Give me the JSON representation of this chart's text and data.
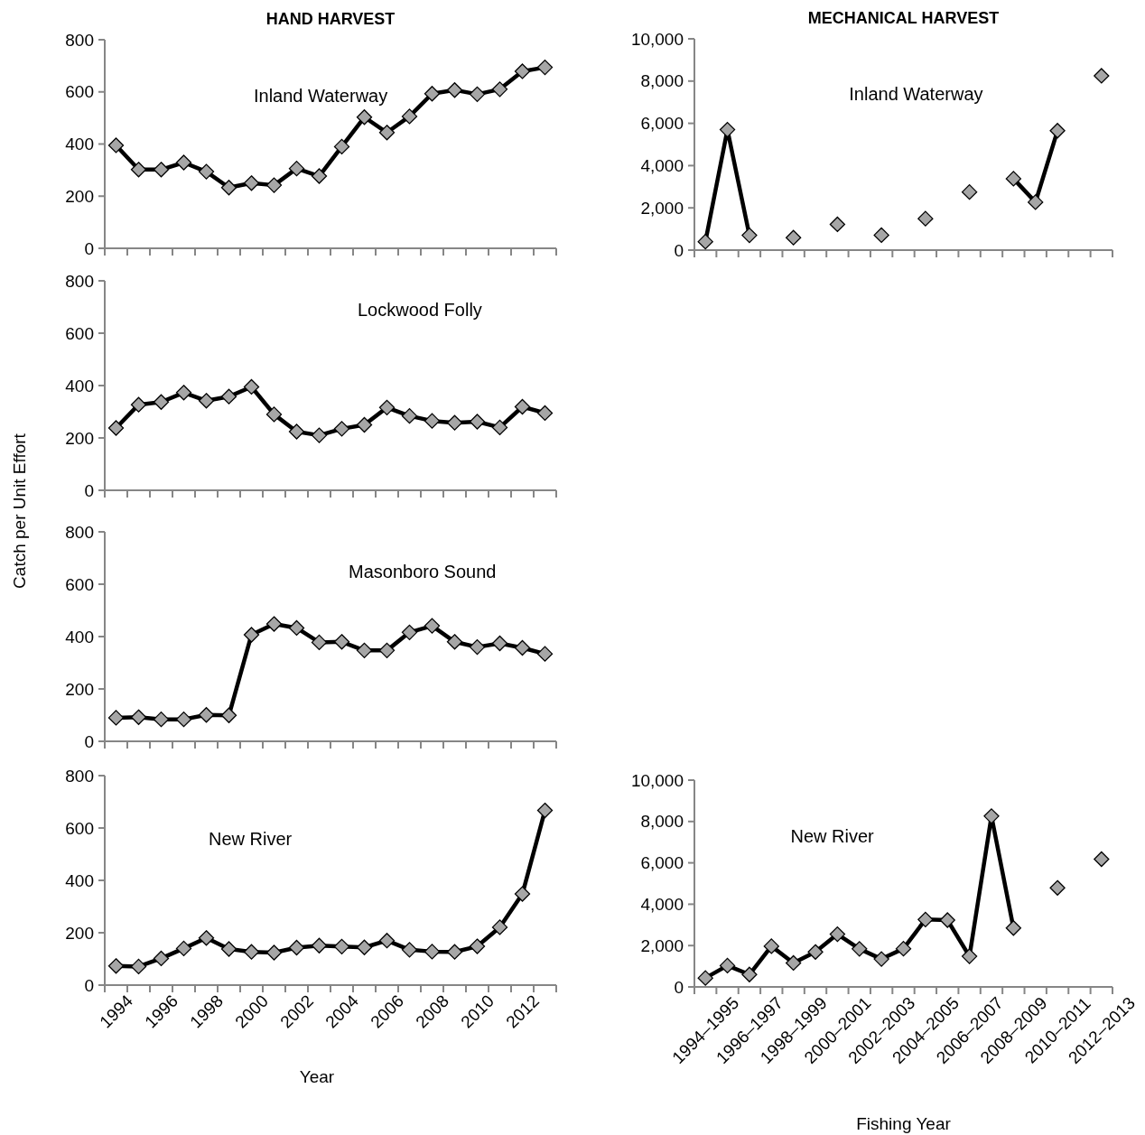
{
  "chart_data": [
    {
      "type": "line",
      "title": "HAND HARVEST",
      "ylim": [
        0,
        800
      ],
      "yticks": [
        0,
        200,
        400,
        600,
        800
      ],
      "tick_labels": "y",
      "marker": "diamond",
      "line_style": "solid",
      "series": [
        {
          "name": "Inland Waterway",
          "color": "#a6a6a6",
          "values": [
            395,
            302,
            302,
            329,
            294,
            233,
            250,
            242,
            306,
            277,
            390,
            503,
            444,
            506,
            593,
            607,
            591,
            610,
            679,
            694
          ]
        }
      ]
    },
    {
      "type": "line",
      "ylim": [
        0,
        800
      ],
      "yticks": [
        0,
        200,
        400,
        600,
        800
      ],
      "tick_labels": "y",
      "marker": "diamond",
      "line_style": "solid",
      "series": [
        {
          "name": "Lockwood Folly",
          "color": "#a6a6a6",
          "values": [
            238,
            327,
            337,
            373,
            342,
            358,
            395,
            290,
            224,
            210,
            235,
            250,
            316,
            284,
            265,
            258,
            262,
            240,
            319,
            295
          ]
        }
      ]
    },
    {
      "type": "line",
      "ylabel": "Catch per Unit Effort",
      "ylim": [
        0,
        800
      ],
      "yticks": [
        0,
        200,
        400,
        600,
        800
      ],
      "tick_labels": "y",
      "marker": "diamond",
      "line_style": "solid",
      "series": [
        {
          "name": "Masonboro Sound",
          "color": "#a6a6a6",
          "values": [
            90,
            92,
            84,
            84,
            101,
            99,
            407,
            448,
            433,
            378,
            380,
            347,
            347,
            416,
            441,
            380,
            360,
            374,
            357,
            334
          ]
        }
      ]
    },
    {
      "type": "line",
      "xlabel": "Year",
      "categories": [
        "1994",
        null,
        "1996",
        null,
        "1998",
        null,
        "2000",
        null,
        "2002",
        null,
        "2004",
        null,
        "2006",
        null,
        "2008",
        null,
        "2010",
        null,
        "2012",
        null
      ],
      "ylim": [
        0,
        800
      ],
      "yticks": [
        0,
        200,
        400,
        600,
        800
      ],
      "marker": "diamond",
      "line_style": "solid",
      "series": [
        {
          "name": "New River",
          "color": "#a6a6a6",
          "values": [
            73,
            71,
            102,
            140,
            180,
            138,
            127,
            124,
            143,
            151,
            147,
            144,
            170,
            135,
            128,
            127,
            148,
            221,
            348,
            667
          ]
        }
      ]
    },
    {
      "type": "line",
      "title": "MECHANICAL HARVEST",
      "ylim": [
        0,
        10000
      ],
      "yticks": [
        0,
        {
          "value": 2000,
          "label": "2,000"
        },
        {
          "value": 4000,
          "label": "4,000"
        },
        {
          "value": 6000,
          "label": "6,000"
        },
        {
          "value": 8000,
          "label": "8,000"
        },
        {
          "value": 10000,
          "label": "10,000"
        }
      ],
      "tick_labels": "y",
      "marker": "diamond",
      "line_style": "solid",
      "series": [
        {
          "name": "Inland Waterway",
          "color": "#a6a6a6",
          "values": [
            400,
            5700,
            700,
            null,
            590,
            null,
            1220,
            null,
            710,
            null,
            1490,
            null,
            2750,
            null,
            3380,
            2270,
            5650,
            null,
            8250
          ]
        }
      ]
    },
    {
      "type": "line",
      "xlabel": "Fishing Year",
      "categories": [
        "1994–1995",
        null,
        "1996–1997",
        null,
        "1998–1999",
        null,
        "2000–2001",
        null,
        "2002–2003",
        null,
        "2004–2005",
        null,
        "2006–2007",
        null,
        "2008–2009",
        null,
        "2010–2011",
        null,
        "2012–2013"
      ],
      "ylim": [
        0,
        10000
      ],
      "yticks": [
        0,
        {
          "value": 2000,
          "label": "2,000"
        },
        {
          "value": 4000,
          "label": "4,000"
        },
        {
          "value": 6000,
          "label": "6,000"
        },
        {
          "value": 8000,
          "label": "8,000"
        },
        {
          "value": 10000,
          "label": "10,000"
        }
      ],
      "marker": "diamond",
      "line_style": "solid",
      "series": [
        {
          "name": "New River",
          "color": "#a6a6a6",
          "values": [
            430,
            1030,
            600,
            1970,
            1160,
            1690,
            2550,
            1840,
            1350,
            1850,
            3260,
            3230,
            1480,
            8260,
            2850,
            null,
            4790,
            null,
            6180
          ]
        }
      ]
    }
  ]
}
